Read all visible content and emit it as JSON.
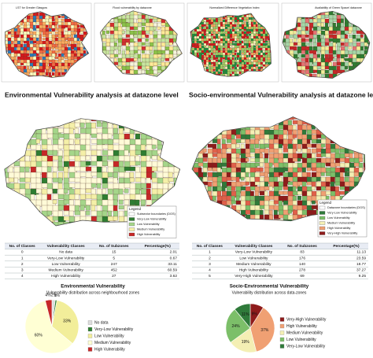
{
  "top_maps": [
    {
      "title": "LST for Greater Glasgow"
    },
    {
      "title": "Flood vulnerability by datazone"
    },
    {
      "title": "Normalized Difference Vegetation Index"
    },
    {
      "title": "Availability of Green Space/ datazone"
    }
  ],
  "left": {
    "heading": "Environmental Vulnerability analysis at datazone level",
    "map_legend": {
      "title": "Legend",
      "items": [
        "Subsector boundaries (DGS)",
        "Very-Low Vulnerability",
        "Low Vulnerability",
        "Medium Vulnerability",
        "High Vulnerability"
      ]
    },
    "table": {
      "headers": [
        "No. of Classes",
        "Vulnerability Classes",
        "No. of Subzones",
        "Percentage(%)"
      ],
      "rows": [
        [
          0,
          "No data",
          15,
          2.01
        ],
        [
          1,
          "Very-Low Vulnerability",
          5,
          0.67
        ],
        [
          2,
          "Low Vulnerability",
          247,
          33.11
        ],
        [
          3,
          "Medium Vulnerability",
          452,
          60.59
        ],
        [
          4,
          "High Vulnerability",
          27,
          3.62
        ]
      ]
    },
    "pie": {
      "title": "Environmental Vulnerability",
      "subtitle": "Vulnerability distribution across neighbourhood zones",
      "labels": [
        "No data",
        "Very-Low Vulnerability",
        "Low Vulnerability",
        "Medium Vulnerability",
        "High Vulnerability"
      ],
      "values": [
        2,
        1,
        33,
        60,
        4
      ],
      "value_labels": [
        "2%",
        "1%",
        "33%",
        "60%",
        "4%"
      ],
      "colors": [
        "#dcdcdc",
        "#2e7d32",
        "#f2ee9a",
        "#ffffd4",
        "#c62828"
      ]
    }
  },
  "right": {
    "heading": "Socio-environmental Vulnerability analysis at datazone level",
    "map_legend": {
      "title": "Legend",
      "items": [
        "Datazone boundaries (DGS)",
        "Very-Low Vulnerability",
        "Low Vulnerability",
        "Medium Vulnerability",
        "High Vulnerability",
        "Very-High Vulnerability"
      ]
    },
    "table": {
      "headers": [
        "No. of Classes",
        "Vulnerability Classes",
        "No. of Subzones",
        "Percentage(%)"
      ],
      "rows": [
        [
          1,
          "Very-Low Vulnerability",
          83,
          11.13
        ],
        [
          2,
          "Low Vulnerability",
          176,
          23.59
        ],
        [
          3,
          "Medium Vulnerability",
          140,
          18.77
        ],
        [
          4,
          "High Vulnerability",
          278,
          37.27
        ],
        [
          5,
          "Very-High Vulnerability",
          69,
          9.25
        ]
      ]
    },
    "pie": {
      "title": "Socio-Environmental Vulnerability",
      "subtitle": "Vulnerability distribution across data-zones",
      "labels": [
        "Very-High Vulnerability",
        "High Vulnerability",
        "Medium Vulnerability",
        "Low Vulnerability",
        "Very-Low Vulnerability"
      ],
      "values": [
        9,
        37,
        19,
        24,
        11
      ],
      "value_labels": [
        "9%",
        "37%",
        "19%",
        "24%",
        "11%"
      ],
      "colors": [
        "#8e1b1b",
        "#f0a073",
        "#f4efb4",
        "#7cbf69",
        "#2f7a3a"
      ]
    }
  }
}
